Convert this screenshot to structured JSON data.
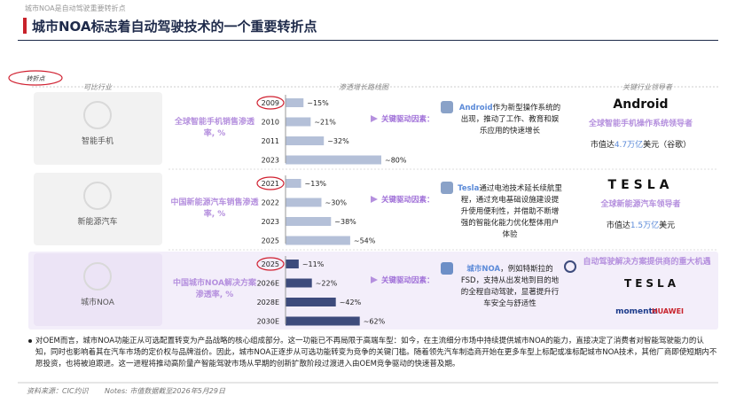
{
  "header": {
    "kicker": "城市NOA是自动驾驶重要转折点",
    "title": "城市NOA标志着自动驾驶技术的一个重要转折点",
    "note": "转折点"
  },
  "columns": [
    "可比行业",
    "渗透增长路线图",
    "关键行业领导者"
  ],
  "rows": [
    {
      "industry": "智能手机",
      "metric": "全球智能手机销售渗透率, %",
      "chart": {
        "type": "bar",
        "orientation": "horizontal",
        "categories": [
          "2009",
          "2010",
          "2011",
          "2023"
        ],
        "values": [
          15,
          21,
          32,
          80
        ],
        "value_labels": [
          "~15%",
          "~21%",
          "~32%",
          "~80%"
        ],
        "color": "#b4c0d8"
      },
      "driver_label": "关键驱动因素：",
      "driver_brand": "Android",
      "driver_text": "作为新型操作系统的出现，推动了工作、教育和娱乐应用的快速增长",
      "leader_logo": "Android",
      "leader_title": "全球智能手机操作系统领导者",
      "cap": [
        "市值达",
        "4.7万亿",
        "美元（谷歌）"
      ]
    },
    {
      "industry": "新能源汽车",
      "metric": "中国新能源汽车销售渗透率, %",
      "chart": {
        "type": "bar",
        "orientation": "horizontal",
        "categories": [
          "2021",
          "2022",
          "2023",
          "2025"
        ],
        "values": [
          13,
          30,
          38,
          54
        ],
        "value_labels": [
          "~13%",
          "~30%",
          "~38%",
          "~54%"
        ],
        "color": "#b4c0d8"
      },
      "driver_label": "关键驱动因素：",
      "driver_brand": "Tesla",
      "driver_text": "通过电池技术延长续航里程，通过充电基础设施建设提升使用便利性，并借助不断增强的智能化能力优化整体用户体验",
      "leader_logo": "TESLA",
      "leader_title": "全球新能源汽车领导者",
      "cap": [
        "市值达",
        "1.5万亿",
        "美元"
      ]
    },
    {
      "industry": "城市NOA",
      "metric": "中国城市NOA解决方案渗透率, %",
      "chart": {
        "type": "bar",
        "orientation": "horizontal",
        "categories": [
          "2025",
          "2026E",
          "2028E",
          "2030E"
        ],
        "values": [
          11,
          22,
          42,
          62
        ],
        "value_labels": [
          "~11%",
          "~22%",
          "~42%",
          "~62%"
        ],
        "color": "#3d4b7c"
      },
      "driver_label": "关键驱动因素：",
      "driver_brand": "城市NOA",
      "driver_text": "，例如特斯拉的FSD，支持从出发地到目的地的全程自动驾驶，显著提升行车安全与舒适性",
      "leader_title": "自动驾驶解决方案提供商的重大机遇",
      "logos": [
        "TESLA",
        "momenta",
        "HUAWEI"
      ]
    }
  ],
  "bullet": "对OEM而言，城市NOA功能正从可选配置转变为产品战略的核心组成部分。这一功能已不再局限于高端车型：如今，在主流细分市场中持续提供城市NOA的能力，直接决定了消费者对智能驾驶能力的认知，同时也影响着其在汽车市场的定价权与品牌溢价。因此，城市NOA正逐步从可选功能转变为竞争的关键门槛。随着领先汽车制造商开始在更多车型上标配或准标配城市NOA技术，其他厂商即使短期内不愿投资，也将被迫跟进。这一进程将推动高阶量产智能驾驶市场从早期的创新扩散阶段过渡进入由OEM竞争驱动的快速普及期。",
  "footer": {
    "source": "资料来源：CIC灼识",
    "notes": "Notes:  市值数据截至2026年5月29日"
  }
}
